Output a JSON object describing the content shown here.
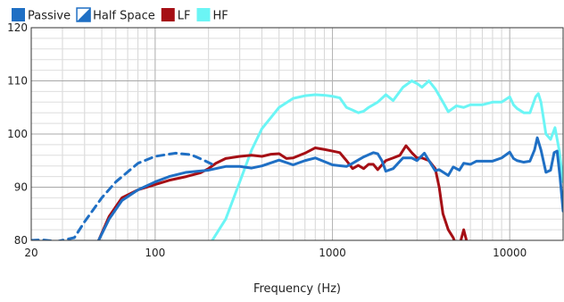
{
  "chart_data": {
    "type": "line",
    "title": "",
    "xlabel": "Frequency (Hz)",
    "ylabel": "",
    "x_scale": "log",
    "xlim": [
      20,
      20000
    ],
    "ylim": [
      80,
      120
    ],
    "x_ticks": [
      {
        "value": 20,
        "label": "20"
      },
      {
        "value": 100,
        "label": "100"
      },
      {
        "value": 1000,
        "label": "1000"
      },
      {
        "value": 10000,
        "label": "10000"
      }
    ],
    "y_ticks": [
      {
        "value": 80,
        "label": "80"
      },
      {
        "value": 90,
        "label": "90"
      },
      {
        "value": 100,
        "label": "100"
      },
      {
        "value": 110,
        "label": "110"
      },
      {
        "value": 120,
        "label": "120"
      }
    ],
    "grid": true,
    "legend_position": "top-left",
    "series": [
      {
        "name": "Passive",
        "color": "#1f6fc4",
        "dash": "solid",
        "points": [
          [
            48,
            80
          ],
          [
            55,
            84
          ],
          [
            65,
            87.5
          ],
          [
            80,
            89.5
          ],
          [
            100,
            91
          ],
          [
            120,
            92
          ],
          [
            150,
            92.8
          ],
          [
            200,
            93.2
          ],
          [
            250,
            93.9
          ],
          [
            300,
            93.9
          ],
          [
            350,
            93.6
          ],
          [
            400,
            94
          ],
          [
            500,
            95.1
          ],
          [
            600,
            94.2
          ],
          [
            700,
            95
          ],
          [
            800,
            95.5
          ],
          [
            1000,
            94.2
          ],
          [
            1200,
            93.9
          ],
          [
            1300,
            94.5
          ],
          [
            1500,
            95.7
          ],
          [
            1700,
            96.5
          ],
          [
            1800,
            96.3
          ],
          [
            1900,
            95
          ],
          [
            2000,
            93
          ],
          [
            2200,
            93.5
          ],
          [
            2500,
            95.5
          ],
          [
            2800,
            95.5
          ],
          [
            3000,
            95
          ],
          [
            3300,
            96.4
          ],
          [
            3500,
            95
          ],
          [
            3800,
            93.1
          ],
          [
            4000,
            93.3
          ],
          [
            4500,
            92.2
          ],
          [
            4800,
            93.8
          ],
          [
            5200,
            93.2
          ],
          [
            5500,
            94.5
          ],
          [
            6000,
            94.3
          ],
          [
            6500,
            94.9
          ],
          [
            7000,
            94.9
          ],
          [
            8000,
            94.9
          ],
          [
            9000,
            95.5
          ],
          [
            10000,
            96.6
          ],
          [
            10500,
            95.4
          ],
          [
            11000,
            95
          ],
          [
            12000,
            94.7
          ],
          [
            13000,
            94.9
          ],
          [
            13800,
            97
          ],
          [
            14300,
            99.3
          ],
          [
            15000,
            97
          ],
          [
            16000,
            92.8
          ],
          [
            17000,
            93.2
          ],
          [
            17800,
            96.5
          ],
          [
            18500,
            96.8
          ],
          [
            19200,
            92
          ],
          [
            20000,
            85.5
          ]
        ]
      },
      {
        "name": "Half Space",
        "color": "#1f6fc4",
        "dash": "dashed",
        "points": [
          [
            20,
            80
          ],
          [
            23,
            80.1
          ],
          [
            28,
            79.8
          ],
          [
            35,
            80.5
          ],
          [
            40,
            83.5
          ],
          [
            50,
            88
          ],
          [
            60,
            91
          ],
          [
            80,
            94.5
          ],
          [
            100,
            95.8
          ],
          [
            130,
            96.4
          ],
          [
            160,
            96.1
          ],
          [
            190,
            95
          ],
          [
            210,
            94.3
          ]
        ]
      },
      {
        "name": "LF",
        "color": "#a50f15",
        "dash": "solid",
        "points": [
          [
            48,
            80
          ],
          [
            55,
            84.5
          ],
          [
            65,
            88
          ],
          [
            80,
            89.5
          ],
          [
            100,
            90.5
          ],
          [
            120,
            91.3
          ],
          [
            150,
            92
          ],
          [
            180,
            92.7
          ],
          [
            200,
            93.5
          ],
          [
            220,
            94.5
          ],
          [
            250,
            95.4
          ],
          [
            300,
            95.8
          ],
          [
            350,
            96
          ],
          [
            400,
            95.8
          ],
          [
            450,
            96.2
          ],
          [
            500,
            96.3
          ],
          [
            550,
            95.4
          ],
          [
            600,
            95.5
          ],
          [
            700,
            96.4
          ],
          [
            800,
            97.4
          ],
          [
            900,
            97.1
          ],
          [
            1000,
            96.8
          ],
          [
            1100,
            96.5
          ],
          [
            1200,
            95
          ],
          [
            1300,
            93.5
          ],
          [
            1400,
            94.1
          ],
          [
            1500,
            93.5
          ],
          [
            1600,
            94.3
          ],
          [
            1700,
            94.3
          ],
          [
            1800,
            93.3
          ],
          [
            2000,
            95
          ],
          [
            2200,
            95.5
          ],
          [
            2400,
            96
          ],
          [
            2600,
            97.8
          ],
          [
            2800,
            96.5
          ],
          [
            3000,
            95.5
          ],
          [
            3200,
            95.5
          ],
          [
            3500,
            95
          ],
          [
            3800,
            93.5
          ],
          [
            4000,
            90
          ],
          [
            4200,
            85
          ],
          [
            4500,
            82
          ],
          [
            4800,
            80.5
          ],
          [
            5000,
            79
          ],
          [
            5300,
            80
          ],
          [
            5500,
            82
          ],
          [
            5700,
            80
          ]
        ]
      },
      {
        "name": "HF",
        "color": "#6bf5f5",
        "dash": "solid",
        "points": [
          [
            210,
            80
          ],
          [
            250,
            84
          ],
          [
            300,
            91
          ],
          [
            350,
            97
          ],
          [
            400,
            101
          ],
          [
            500,
            105
          ],
          [
            600,
            106.7
          ],
          [
            700,
            107.2
          ],
          [
            800,
            107.4
          ],
          [
            900,
            107.3
          ],
          [
            1000,
            107.1
          ],
          [
            1100,
            106.8
          ],
          [
            1200,
            105
          ],
          [
            1300,
            104.5
          ],
          [
            1400,
            104
          ],
          [
            1500,
            104.3
          ],
          [
            1600,
            105
          ],
          [
            1800,
            106
          ],
          [
            2000,
            107.4
          ],
          [
            2200,
            106.3
          ],
          [
            2500,
            108.8
          ],
          [
            2800,
            110
          ],
          [
            3000,
            109.5
          ],
          [
            3200,
            108.8
          ],
          [
            3500,
            110
          ],
          [
            3800,
            108.5
          ],
          [
            4200,
            106
          ],
          [
            4500,
            104.2
          ],
          [
            5000,
            105.3
          ],
          [
            5500,
            105
          ],
          [
            6000,
            105.5
          ],
          [
            7000,
            105.5
          ],
          [
            8000,
            106
          ],
          [
            9000,
            106
          ],
          [
            10000,
            107
          ],
          [
            10500,
            105.5
          ],
          [
            11000,
            104.8
          ],
          [
            12000,
            104
          ],
          [
            13000,
            104
          ],
          [
            14000,
            107
          ],
          [
            14500,
            107.6
          ],
          [
            15000,
            106
          ],
          [
            16000,
            100
          ],
          [
            17000,
            99
          ],
          [
            18000,
            101.2
          ],
          [
            19000,
            97
          ],
          [
            20000,
            91
          ]
        ]
      }
    ]
  }
}
